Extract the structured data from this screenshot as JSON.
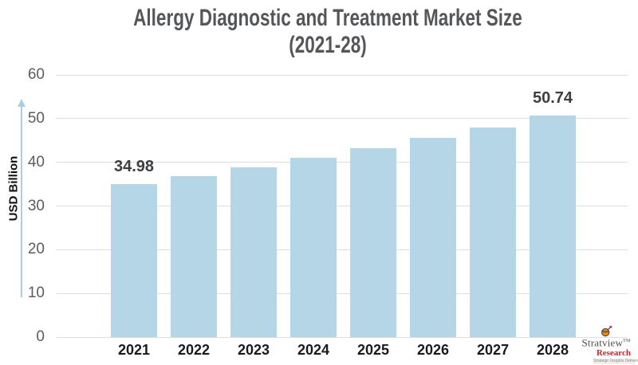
{
  "title": {
    "line1": "Allergy Diagnostic and Treatment Market Size",
    "line2": "(2021-28)"
  },
  "y_axis": {
    "label": "USD Billion",
    "ticks": [
      0,
      10,
      20,
      30,
      40,
      50,
      60
    ]
  },
  "chart_data": {
    "type": "bar",
    "title": "Allergy Diagnostic and Treatment Market Size (2021-28)",
    "categories": [
      "2021",
      "2022",
      "2023",
      "2024",
      "2025",
      "2026",
      "2027",
      "2028"
    ],
    "values": [
      34.98,
      36.9,
      38.9,
      41.0,
      43.25,
      45.6,
      48.0,
      50.74
    ],
    "annotations": [
      {
        "category": "2021",
        "text": "34.98"
      },
      {
        "category": "2028",
        "text": "50.74"
      }
    ],
    "xlabel": "",
    "ylabel": "USD Billion",
    "ylim": [
      0,
      60
    ],
    "grid": true,
    "legend": false,
    "bar_color": "#b5d6e7"
  },
  "colors": {
    "bar": "#b5d6e7",
    "arrow": "#a9cfe6",
    "gridline": "#dedede",
    "title_text": "#55565a",
    "tick_text": "#5c5d60",
    "category_text": "#1b1b1b",
    "value_label_text": "#3d3e40",
    "logo_red": "#c9252c",
    "logo_dark": "#4b4b4b",
    "background": "#ffffff"
  },
  "logo": {
    "name": "Stratview",
    "tm": "TM",
    "sub": "Research",
    "tagline": "Strategic Insights Delivered"
  }
}
